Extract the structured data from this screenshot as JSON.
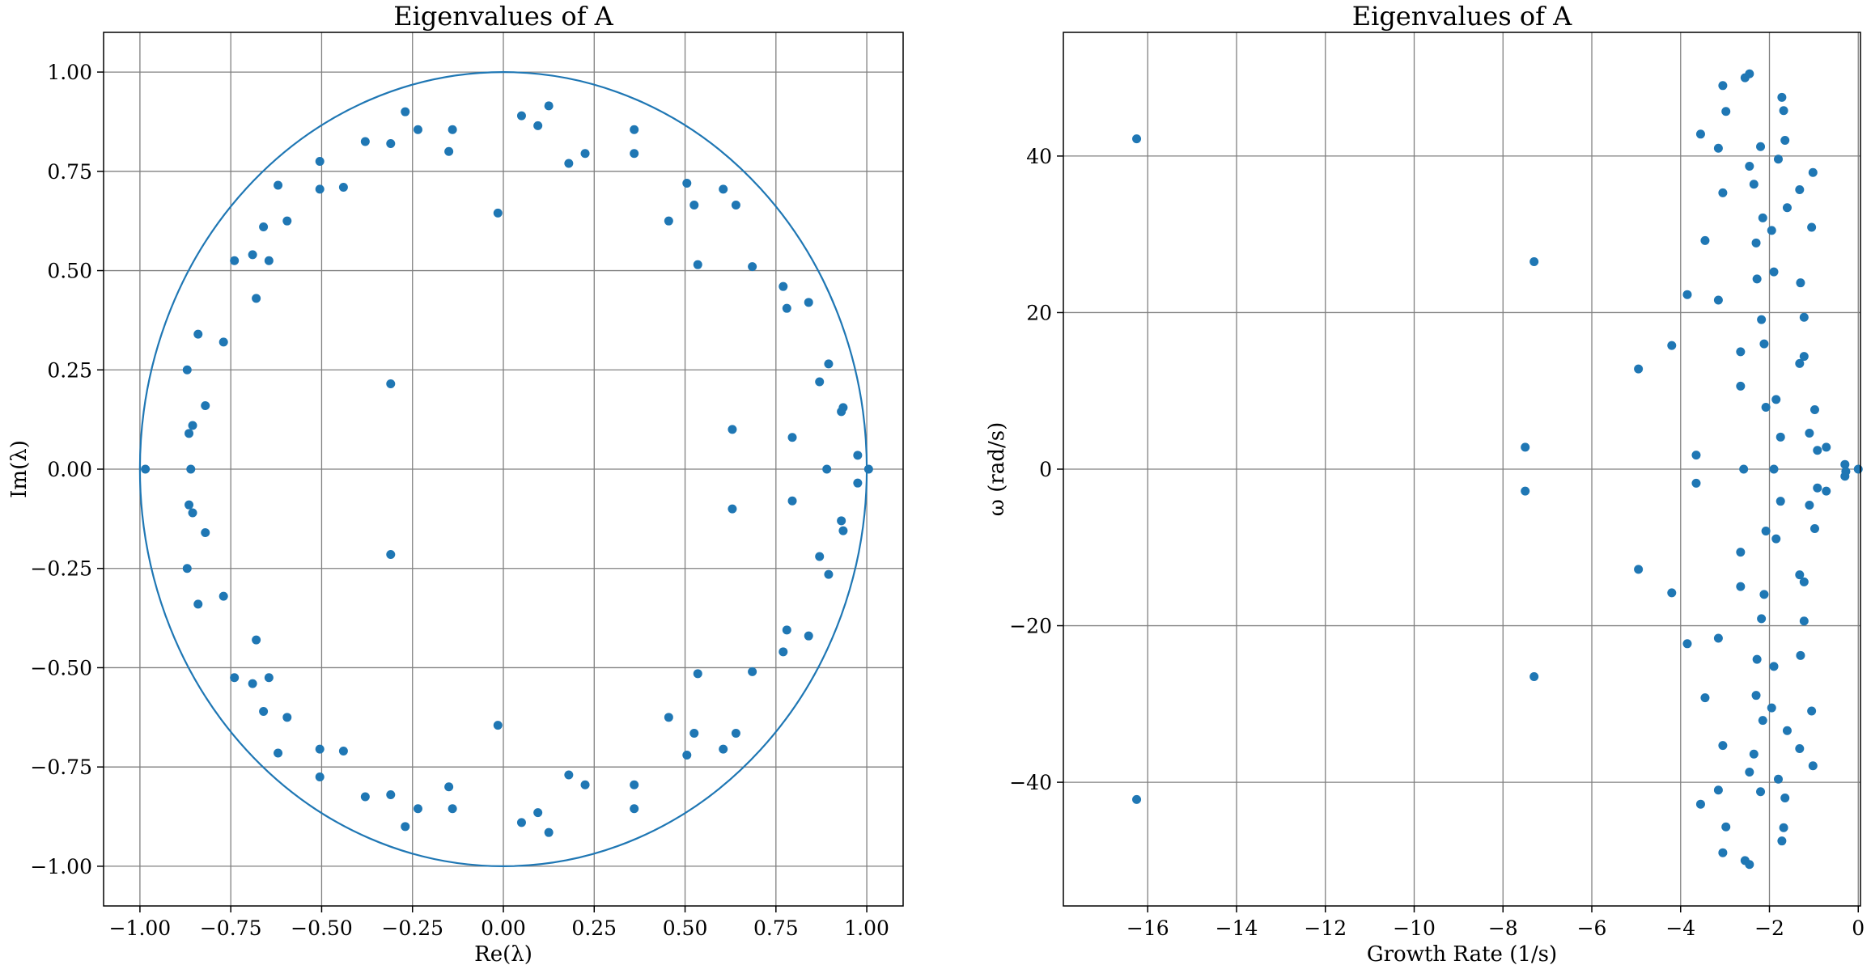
{
  "chart_data": [
    {
      "type": "scatter",
      "title": "Eigenvalues of A",
      "xlabel": "Re(λ)",
      "ylabel": "Im(λ)",
      "xlim": [
        -1.1,
        1.1
      ],
      "ylim": [
        -1.1,
        1.1
      ],
      "xticks": [
        -1.0,
        -0.75,
        -0.5,
        -0.25,
        0.0,
        0.25,
        0.5,
        0.75,
        1.0
      ],
      "xtick_labels": [
        "−1.00",
        "−0.75",
        "−0.50",
        "−0.25",
        "0.00",
        "0.25",
        "0.50",
        "0.75",
        "1.00"
      ],
      "yticks": [
        -1.0,
        -0.75,
        -0.5,
        -0.25,
        0.0,
        0.25,
        0.5,
        0.75,
        1.0
      ],
      "ytick_labels": [
        "−1.00",
        "−0.75",
        "−0.50",
        "−0.25",
        "0.00",
        "0.25",
        "0.50",
        "0.75",
        "1.00"
      ],
      "grid": true,
      "unit_circle": true,
      "color": "#1f77b4",
      "points": [
        [
          -0.985,
          0.0
        ],
        [
          1.005,
          0.0
        ],
        [
          -0.86,
          0.0
        ],
        [
          0.89,
          0.0
        ],
        [
          -0.87,
          0.25
        ],
        [
          -0.865,
          0.09
        ],
        [
          -0.855,
          0.11
        ],
        [
          -0.84,
          0.34
        ],
        [
          -0.82,
          0.16
        ],
        [
          -0.77,
          0.32
        ],
        [
          -0.74,
          0.525
        ],
        [
          -0.69,
          0.54
        ],
        [
          -0.68,
          0.43
        ],
        [
          -0.66,
          0.61
        ],
        [
          -0.645,
          0.525
        ],
        [
          -0.62,
          0.715
        ],
        [
          -0.595,
          0.625
        ],
        [
          -0.505,
          0.775
        ],
        [
          -0.505,
          0.705
        ],
        [
          -0.44,
          0.71
        ],
        [
          -0.38,
          0.825
        ],
        [
          -0.31,
          0.82
        ],
        [
          -0.31,
          0.215
        ],
        [
          -0.27,
          0.9
        ],
        [
          -0.235,
          0.855
        ],
        [
          -0.15,
          0.8
        ],
        [
          -0.14,
          0.855
        ],
        [
          -0.015,
          0.645
        ],
        [
          0.05,
          0.89
        ],
        [
          0.095,
          0.865
        ],
        [
          0.125,
          0.915
        ],
        [
          0.18,
          0.77
        ],
        [
          0.225,
          0.795
        ],
        [
          0.36,
          0.855
        ],
        [
          0.36,
          0.795
        ],
        [
          0.455,
          0.625
        ],
        [
          0.505,
          0.72
        ],
        [
          0.525,
          0.665
        ],
        [
          0.535,
          0.515
        ],
        [
          0.605,
          0.705
        ],
        [
          0.63,
          0.1
        ],
        [
          0.64,
          0.665
        ],
        [
          0.685,
          0.51
        ],
        [
          0.77,
          0.46
        ],
        [
          0.78,
          0.405
        ],
        [
          0.795,
          0.08
        ],
        [
          0.84,
          0.42
        ],
        [
          0.87,
          0.22
        ],
        [
          0.895,
          0.265
        ],
        [
          0.935,
          0.155
        ],
        [
          0.975,
          0.035
        ],
        [
          -0.87,
          -0.25
        ],
        [
          -0.865,
          -0.09
        ],
        [
          -0.855,
          -0.11
        ],
        [
          -0.84,
          -0.34
        ],
        [
          -0.82,
          -0.16
        ],
        [
          -0.77,
          -0.32
        ],
        [
          -0.74,
          -0.525
        ],
        [
          -0.69,
          -0.54
        ],
        [
          -0.68,
          -0.43
        ],
        [
          -0.66,
          -0.61
        ],
        [
          -0.645,
          -0.525
        ],
        [
          -0.62,
          -0.715
        ],
        [
          -0.595,
          -0.625
        ],
        [
          -0.505,
          -0.775
        ],
        [
          -0.505,
          -0.705
        ],
        [
          -0.44,
          -0.71
        ],
        [
          -0.38,
          -0.825
        ],
        [
          -0.31,
          -0.82
        ],
        [
          -0.31,
          -0.215
        ],
        [
          -0.27,
          -0.9
        ],
        [
          -0.235,
          -0.855
        ],
        [
          -0.15,
          -0.8
        ],
        [
          -0.14,
          -0.855
        ],
        [
          -0.015,
          -0.645
        ],
        [
          0.05,
          -0.89
        ],
        [
          0.095,
          -0.865
        ],
        [
          0.125,
          -0.915
        ],
        [
          0.18,
          -0.77
        ],
        [
          0.225,
          -0.795
        ],
        [
          0.36,
          -0.855
        ],
        [
          0.36,
          -0.795
        ],
        [
          0.455,
          -0.625
        ],
        [
          0.505,
          -0.72
        ],
        [
          0.525,
          -0.665
        ],
        [
          0.535,
          -0.515
        ],
        [
          0.605,
          -0.705
        ],
        [
          0.63,
          -0.1
        ],
        [
          0.64,
          -0.665
        ],
        [
          0.685,
          -0.51
        ],
        [
          0.77,
          -0.46
        ],
        [
          0.78,
          -0.405
        ],
        [
          0.795,
          -0.08
        ],
        [
          0.84,
          -0.42
        ],
        [
          0.87,
          -0.22
        ],
        [
          0.895,
          -0.265
        ],
        [
          0.935,
          -0.155
        ],
        [
          0.975,
          -0.035
        ],
        [
          0.93,
          0.145
        ],
        [
          0.93,
          -0.13
        ]
      ]
    },
    {
      "type": "scatter",
      "title": "Eigenvalues of A",
      "xlabel": "Growth Rate (1/s)",
      "ylabel": "ω (rad/s)",
      "xlim": [
        -17.9,
        0.05
      ],
      "ylim": [
        -55.8,
        55.8
      ],
      "xticks": [
        -16,
        -14,
        -12,
        -10,
        -8,
        -6,
        -4,
        -2,
        0
      ],
      "xtick_labels": [
        "−16",
        "−14",
        "−12",
        "−10",
        "−8",
        "−6",
        "−4",
        "−2",
        "0"
      ],
      "yticks": [
        -40,
        -20,
        0,
        20,
        40
      ],
      "ytick_labels": [
        "−40",
        "−20",
        "0",
        "20",
        "40"
      ],
      "grid": true,
      "color": "#1f77b4",
      "points": [
        [
          -16.25,
          42.2
        ],
        [
          -7.3,
          26.5
        ],
        [
          -7.5,
          2.8
        ],
        [
          -4.95,
          12.8
        ],
        [
          -4.2,
          15.8
        ],
        [
          -3.85,
          22.3
        ],
        [
          -3.65,
          1.8
        ],
        [
          -3.55,
          42.8
        ],
        [
          -3.45,
          29.2
        ],
        [
          -3.15,
          41.0
        ],
        [
          -3.15,
          21.6
        ],
        [
          -3.05,
          49.0
        ],
        [
          -3.05,
          35.3
        ],
        [
          -2.98,
          45.7
        ],
        [
          -2.65,
          15.0
        ],
        [
          -2.65,
          10.6
        ],
        [
          -2.58,
          0.0
        ],
        [
          -2.55,
          50.0
        ],
        [
          -2.45,
          50.5
        ],
        [
          -2.45,
          38.7
        ],
        [
          -2.35,
          36.4
        ],
        [
          -2.3,
          28.9
        ],
        [
          -2.28,
          24.3
        ],
        [
          -2.2,
          41.2
        ],
        [
          -2.18,
          19.1
        ],
        [
          -2.15,
          32.1
        ],
        [
          -2.12,
          16.0
        ],
        [
          -2.08,
          7.9
        ],
        [
          -1.95,
          30.5
        ],
        [
          -1.9,
          25.2
        ],
        [
          -1.9,
          0.0
        ],
        [
          -1.85,
          8.9
        ],
        [
          -1.8,
          39.6
        ],
        [
          -1.75,
          4.1
        ],
        [
          -1.72,
          47.5
        ],
        [
          -1.68,
          45.8
        ],
        [
          -1.65,
          42.0
        ],
        [
          -1.6,
          33.4
        ],
        [
          -1.32,
          35.7
        ],
        [
          -1.3,
          23.8
        ],
        [
          -1.32,
          13.5
        ],
        [
          -1.22,
          19.4
        ],
        [
          -1.22,
          14.4
        ],
        [
          -1.1,
          4.6
        ],
        [
          -1.05,
          30.9
        ],
        [
          -1.02,
          37.9
        ],
        [
          -0.98,
          7.6
        ],
        [
          -0.92,
          2.4
        ],
        [
          -0.72,
          2.8
        ],
        [
          -0.3,
          0.6
        ],
        [
          -0.28,
          -0.3
        ],
        [
          0.0,
          0.0
        ],
        [
          -16.25,
          -42.2
        ],
        [
          -7.3,
          -26.5
        ],
        [
          -7.5,
          -2.8
        ],
        [
          -4.95,
          -12.8
        ],
        [
          -4.2,
          -15.8
        ],
        [
          -3.85,
          -22.3
        ],
        [
          -3.65,
          -1.8
        ],
        [
          -3.55,
          -42.8
        ],
        [
          -3.45,
          -29.2
        ],
        [
          -3.15,
          -41.0
        ],
        [
          -3.15,
          -21.6
        ],
        [
          -3.05,
          -49.0
        ],
        [
          -3.05,
          -35.3
        ],
        [
          -2.98,
          -45.7
        ],
        [
          -2.65,
          -15.0
        ],
        [
          -2.65,
          -10.6
        ],
        [
          -2.55,
          -50.0
        ],
        [
          -2.45,
          -50.5
        ],
        [
          -2.45,
          -38.7
        ],
        [
          -2.35,
          -36.4
        ],
        [
          -2.3,
          -28.9
        ],
        [
          -2.28,
          -24.3
        ],
        [
          -2.2,
          -41.2
        ],
        [
          -2.18,
          -19.1
        ],
        [
          -2.15,
          -32.1
        ],
        [
          -2.12,
          -16.0
        ],
        [
          -2.08,
          -7.9
        ],
        [
          -1.95,
          -30.5
        ],
        [
          -1.9,
          -25.2
        ],
        [
          -1.85,
          -8.9
        ],
        [
          -1.8,
          -39.6
        ],
        [
          -1.75,
          -4.1
        ],
        [
          -1.72,
          -47.5
        ],
        [
          -1.68,
          -45.8
        ],
        [
          -1.65,
          -42.0
        ],
        [
          -1.6,
          -33.4
        ],
        [
          -1.32,
          -35.7
        ],
        [
          -1.3,
          -23.8
        ],
        [
          -1.32,
          -13.5
        ],
        [
          -1.22,
          -19.4
        ],
        [
          -1.22,
          -14.4
        ],
        [
          -1.1,
          -4.6
        ],
        [
          -1.05,
          -30.9
        ],
        [
          -1.02,
          -37.9
        ],
        [
          -0.98,
          -7.6
        ],
        [
          -0.92,
          -2.4
        ],
        [
          -0.72,
          -2.8
        ],
        [
          -0.3,
          -0.9
        ]
      ]
    }
  ]
}
